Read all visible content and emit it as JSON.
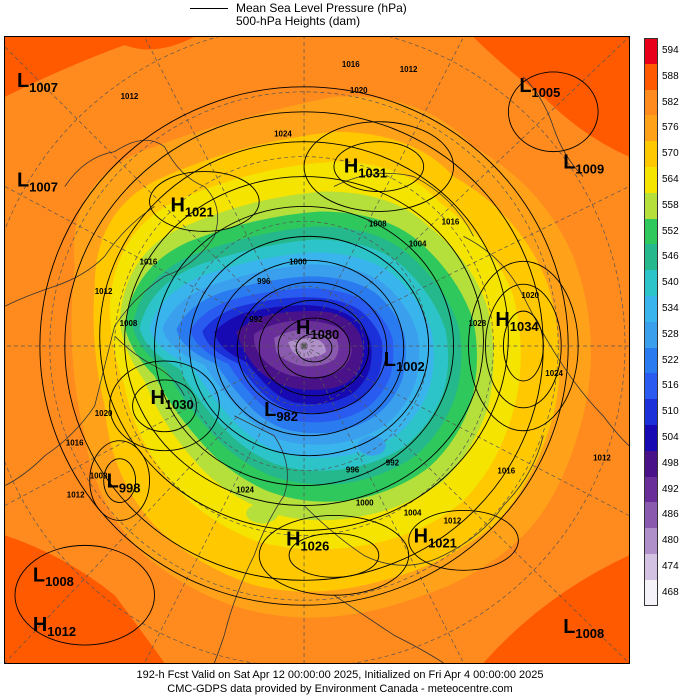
{
  "legend": {
    "line1": "Mean Sea Level Pressure (hPa)",
    "line2": "500-hPa Heights (dam)"
  },
  "colorbar": {
    "levels": [
      "594",
      "588",
      "582",
      "576",
      "570",
      "564",
      "558",
      "552",
      "546",
      "540",
      "534",
      "528",
      "522",
      "516",
      "510",
      "504",
      "498",
      "492",
      "486",
      "480",
      "474",
      "468"
    ],
    "colors": [
      "#e8001a",
      "#ff5a00",
      "#ff8a1e",
      "#ffa21a",
      "#ffc800",
      "#f5e400",
      "#b5df3a",
      "#2fc85c",
      "#24b88c",
      "#2cc4c8",
      "#3ab4ec",
      "#3aa0ee",
      "#2b7bf0",
      "#2a5bf0",
      "#1b30d8",
      "#170ab2",
      "#4a1288",
      "#6a2e9a",
      "#8a5aae",
      "#b090c8",
      "#d4c2e2",
      "#f6f2fa"
    ]
  },
  "pressure_centers": [
    {
      "type": "L",
      "value": "1007"
    },
    {
      "type": "L",
      "value": "1005"
    },
    {
      "type": "L",
      "value": "1007"
    },
    {
      "type": "H",
      "value": "1031"
    },
    {
      "type": "L",
      "value": "1009"
    },
    {
      "type": "H",
      "value": "1021"
    },
    {
      "type": "H",
      "value": "1080"
    },
    {
      "type": "H",
      "value": "1034"
    },
    {
      "type": "L",
      "value": "1002"
    },
    {
      "type": "H",
      "value": "1030"
    },
    {
      "type": "L",
      "value": "982"
    },
    {
      "type": "L",
      "value": "998"
    },
    {
      "type": "H",
      "value": "1026"
    },
    {
      "type": "H",
      "value": "1021"
    },
    {
      "type": "L",
      "value": "1008"
    },
    {
      "type": "H",
      "value": "1012"
    },
    {
      "type": "L",
      "value": "1008"
    }
  ],
  "isobar_labels": [
    "1016",
    "1012",
    "1020",
    "1024",
    "1008",
    "1004",
    "1000",
    "996",
    "992",
    "1028",
    "1016",
    "1012",
    "1016",
    "1008",
    "1012",
    "1020",
    "1024",
    "1000",
    "1004",
    "1012",
    "996",
    "992",
    "1008",
    "1016",
    "1012",
    "1016",
    "1012",
    "1024",
    "1020"
  ],
  "footer": {
    "line1": "192-h Fcst Valid on Sat Apr 12 00:00:00 2025, Initialized on Fri Apr  4 00:00:00 2025",
    "line2": "CMC-GDPS data provided by Environment Canada - meteocentre.com"
  }
}
